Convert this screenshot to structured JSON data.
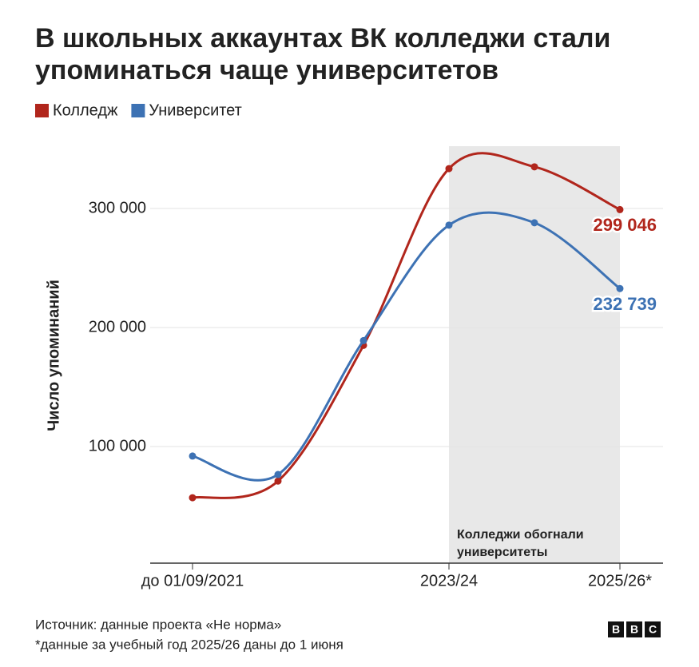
{
  "chart_data": {
    "type": "line",
    "title": [
      "В школьных аккаунтах ВК колледжи стали",
      "упоминаться чаще университетов"
    ],
    "categories": [
      "до 01/09/2021",
      null,
      null,
      "2023/24",
      null,
      "2025/26*"
    ],
    "series": [
      {
        "name": "Колледж",
        "color": "#b1261c",
        "values": [
          57000,
          71000,
          185000,
          333500,
          335000,
          299046
        ],
        "value_labels": [
          null,
          null,
          null,
          null,
          null,
          "299 046"
        ]
      },
      {
        "name": "Университет",
        "color": "#3d72b4",
        "values": [
          92000,
          76500,
          189000,
          286000,
          288000,
          232739
        ],
        "value_labels": [
          null,
          null,
          null,
          null,
          null,
          "232 739"
        ]
      }
    ],
    "ylabel": "Число упоминаний",
    "ylim": [
      0,
      350000
    ],
    "yticks": [
      {
        "value": 100000,
        "label": "100 000"
      },
      {
        "value": 200000,
        "label": "200 000"
      },
      {
        "value": 300000,
        "label": "300 000"
      }
    ],
    "grid": true,
    "annotation": [
      "Колледжи обогнали",
      "университеты"
    ],
    "source": "Источник: данные проекта «Не норма»",
    "note": "*данные за учебный год 2025/26 даны до 1 июня",
    "logo": [
      "B",
      "B",
      "C"
    ]
  }
}
